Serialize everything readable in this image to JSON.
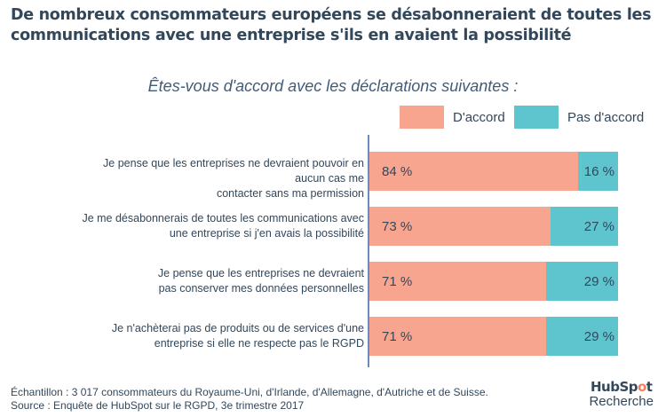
{
  "title": "De nombreux consommateurs européens se désabonneraient de toutes les communications avec une entreprise s'ils en avaient la possibilité",
  "colors": {
    "agree": "#f8a58f",
    "disagree": "#5ec5cf",
    "axis": "#6a8cc0"
  },
  "chart_data": {
    "type": "bar",
    "orientation": "horizontal",
    "stacked": true,
    "percent": true,
    "title": "De nombreux consommateurs européens se désabonneraient de toutes les communications avec une entreprise s'ils en avaient la possibilité",
    "subtitle": "Êtes-vous d'accord avec les déclarations suivantes :",
    "xlabel": "",
    "ylabel": "",
    "xlim": [
      0,
      100
    ],
    "grid": false,
    "legend_position": "top-right",
    "categories": [
      "Je pense que les entreprises ne devraient pouvoir en aucun cas me contacter sans ma permission",
      "Je me désabonnerais de toutes les communications avec une entreprise si j'en avais la possibilité",
      "Je pense que les entreprises ne devraient pas conserver mes données personnelles",
      "Je n'achèterai pas de produits ou de services d'une entreprise si elle ne respecte pas le RGPD"
    ],
    "category_lines": [
      [
        "Je pense que les entreprises ne devraient pouvoir en aucun cas me",
        "contacter sans ma permission"
      ],
      [
        "Je me désabonnerais de toutes les communications avec",
        "une entreprise si j'en avais la possibilité"
      ],
      [
        "Je pense que les entreprises ne devraient",
        "pas conserver mes données personnelles"
      ],
      [
        "Je n'achèterai pas de produits ou de services d'une",
        "entreprise si elle ne respecte pas le RGPD"
      ]
    ],
    "series": [
      {
        "name": "D'accord",
        "values": [
          84,
          73,
          71,
          71
        ],
        "labels": [
          "84 %",
          "73 %",
          "71 %",
          "71 %"
        ]
      },
      {
        "name": "Pas d'accord",
        "values": [
          16,
          27,
          29,
          29
        ],
        "labels": [
          "16 %",
          "27 %",
          "29 %",
          "29 %"
        ]
      }
    ]
  },
  "footnote": {
    "sample": "Échantillon : 3 017 consommateurs du Royaume-Uni, d'Irlande, d'Allemagne, d'Autriche et de Suisse.",
    "source": "Source : Enquête de HubSpot sur le RGPD, 3e trimestre 2017"
  },
  "brand": {
    "logo_main": "HubSp",
    "logo_accent": "o",
    "logo_end": "t",
    "subtitle": "Recherche"
  }
}
